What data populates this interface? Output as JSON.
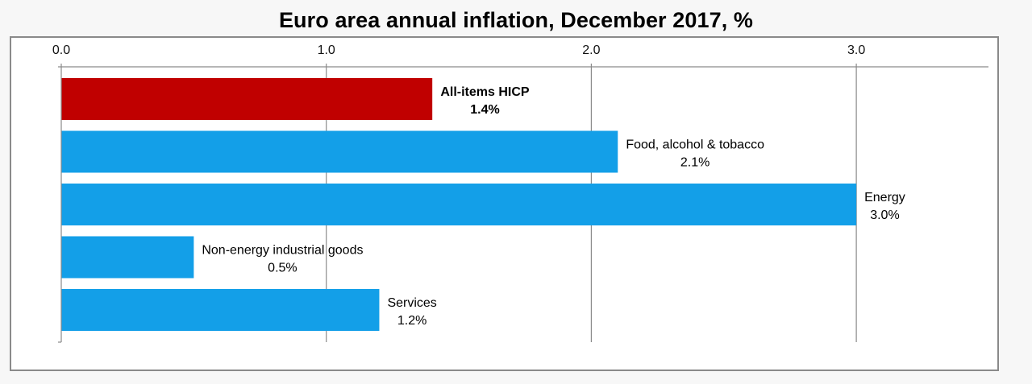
{
  "chart_data": {
    "type": "bar",
    "orientation": "horizontal",
    "title": "Euro area annual inflation, December 2017, %",
    "xlabel": "",
    "ylabel": "",
    "xlim": [
      0,
      3.5
    ],
    "ticks": [
      0.0,
      1.0,
      2.0,
      3.0
    ],
    "tick_labels": [
      "0.0",
      "1.0",
      "2.0",
      "3.0"
    ],
    "axis_position": "top",
    "grid": true,
    "legend": null,
    "categories": [
      "All-items HICP",
      "Food, alcohol & tobacco",
      "Energy",
      "Non-energy industrial goods",
      "Services"
    ],
    "values": [
      1.4,
      2.1,
      3.0,
      0.5,
      1.2
    ],
    "value_labels": [
      "1.4%",
      "2.1%",
      "3.0%",
      "0.5%",
      "1.2%"
    ],
    "highlight": [
      true,
      false,
      false,
      false,
      false
    ],
    "colors": {
      "highlight": "#c00000",
      "default": "#139fe8",
      "grid": "#8a8a8a",
      "frame": "#8a8a8a"
    }
  }
}
